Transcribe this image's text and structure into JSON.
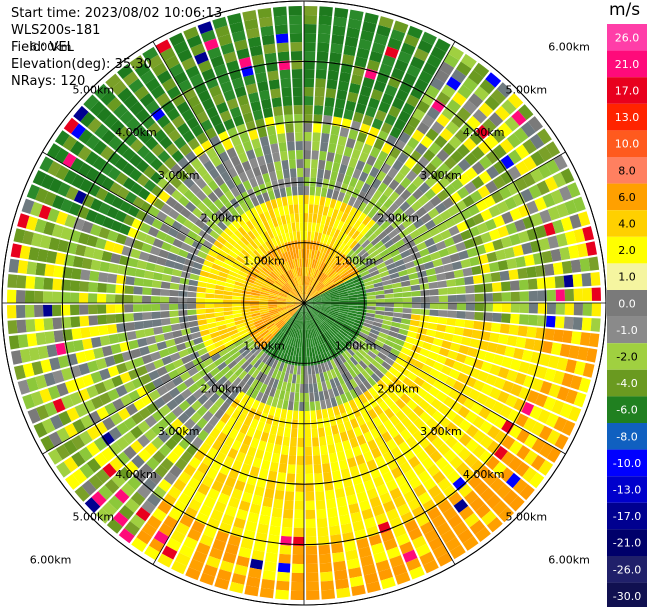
{
  "info": {
    "start_time": "Start time: 2023/08/02 10:06:13",
    "instrument": "WLS200s-181",
    "field": "Field: VEL",
    "elevation": "Elevation(deg): 35.30",
    "nrays": "NRays: 120"
  },
  "colorbar": {
    "unit": "m/s",
    "labels": [
      "26.0",
      "21.0",
      "17.0",
      "13.0",
      "10.0",
      "8.0",
      "6.0",
      "4.0",
      "2.0",
      "1.0",
      "0.0",
      "-1.0",
      "-2.0",
      "-4.0",
      "-6.0",
      "-8.0",
      "-10.0",
      "-13.0",
      "-17.0",
      "-21.0",
      "-26.0",
      "-30.0"
    ],
    "colors": [
      "#ff3ea8",
      "#ff0a7a",
      "#e8001e",
      "#ff2400",
      "#ff5a1e",
      "#ff8060",
      "#ffa000",
      "#ffd000",
      "#ffff00",
      "#f5f5a0",
      "#7a7a7a",
      "#8a8a8a",
      "#a0d040",
      "#6a9a20",
      "#208020",
      "#1060c0",
      "#0000ff",
      "#0000cc",
      "#000090",
      "#00006a",
      "#20206a",
      "#101050"
    ]
  },
  "chart_data": {
    "type": "heatmap",
    "title": "",
    "rings": [
      {
        "label": "1.00km"
      },
      {
        "label": "2.00km"
      },
      {
        "label": "3.00km"
      },
      {
        "label": "4.00km"
      },
      {
        "label": "5.00km"
      },
      {
        "label": "6.00km"
      }
    ],
    "ring_distances_km": [
      1,
      2,
      3,
      4,
      5,
      6
    ],
    "nrays": 120,
    "field": "VEL",
    "unit": "m/s",
    "color_scale": [
      -30,
      -26,
      -21,
      -17,
      -13,
      -10,
      -8,
      -6,
      -4,
      -2,
      -1,
      0,
      1,
      2,
      4,
      6,
      8,
      10,
      13,
      17,
      21,
      26
    ]
  }
}
